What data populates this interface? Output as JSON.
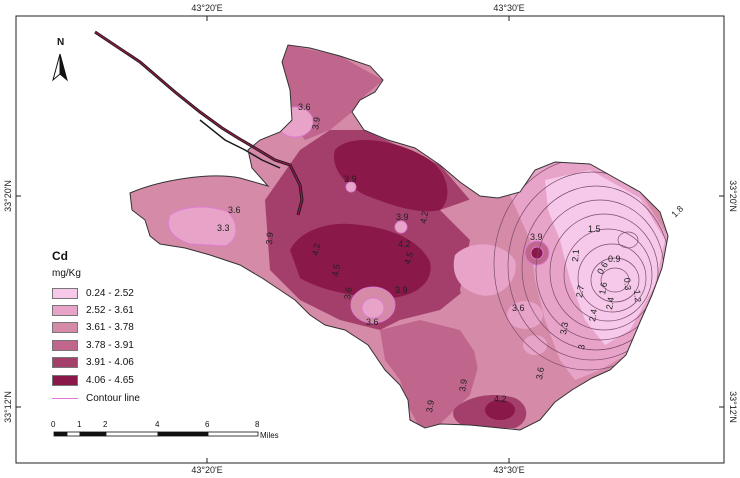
{
  "map": {
    "graticule": {
      "top": [
        "43°20'E",
        "43°30'E"
      ],
      "bottom": [
        "43°20'E",
        "43°30'E"
      ],
      "left": [
        "33°20'N",
        "33°12'N"
      ],
      "right": [
        "33°20'N",
        "33°12'N"
      ]
    },
    "north_label": "N",
    "contour_labels": [
      "3.6",
      "3.9",
      "3.9",
      "3.6",
      "3.3",
      "3.9",
      "3.9",
      "4.2",
      "4.2",
      "4.5",
      "4.2",
      "4.5",
      "3.6",
      "3.9",
      "3.6",
      "3.9",
      "3.6",
      "1.5",
      "2.1",
      "0.9",
      "0.6",
      "0.3",
      "1.2",
      "1.6",
      "1.8",
      "2.7",
      "2.4",
      "3.3",
      "3",
      "3.6",
      "3.9",
      "3.9",
      "4.2",
      "2.4"
    ],
    "colors": {
      "c1": "#f6c9ea",
      "c2": "#e8a3c8",
      "c3": "#d58aa8",
      "c4": "#c0668d",
      "c5": "#a43f6c",
      "c6": "#8a1848",
      "contour": "#e07ad6",
      "river": "#1a1a1a"
    }
  },
  "legend": {
    "title": "Cd",
    "unit": "mg/Kg",
    "classes": [
      {
        "label": "0.24 - 2.52",
        "color": "#f6c9ea"
      },
      {
        "label": "2.52 - 3.61",
        "color": "#e8a3c8"
      },
      {
        "label": "3.61 - 3.78",
        "color": "#d58aa8"
      },
      {
        "label": "3.78 - 3.91",
        "color": "#c0668d"
      },
      {
        "label": "3.91 - 4.06",
        "color": "#a43f6c"
      },
      {
        "label": "4.06 - 4.65",
        "color": "#8a1848"
      }
    ],
    "contour_label": "Contour line"
  },
  "scale_bar": {
    "ticks": [
      "0",
      "1",
      "2",
      "4",
      "6",
      "8"
    ],
    "unit": "Miles"
  }
}
